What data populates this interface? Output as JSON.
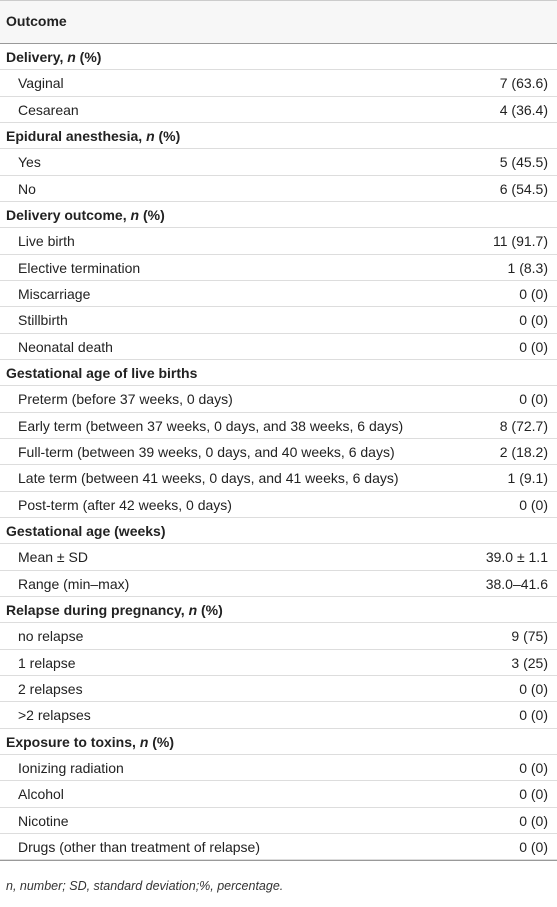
{
  "table": {
    "header": "Outcome",
    "sections": [
      {
        "title": [
          {
            "text": "Delivery, "
          },
          {
            "text": "n",
            "italic": true
          },
          {
            "text": " (%)"
          }
        ],
        "rows": [
          [
            "Vaginal",
            "7 (63.6)"
          ],
          [
            "Cesarean",
            "4 (36.4)"
          ]
        ]
      },
      {
        "title": [
          {
            "text": "Epidural anesthesia, "
          },
          {
            "text": "n",
            "italic": true
          },
          {
            "text": " (%)"
          }
        ],
        "rows": [
          [
            "Yes",
            "5 (45.5)"
          ],
          [
            "No",
            "6 (54.5)"
          ]
        ]
      },
      {
        "title": [
          {
            "text": "Delivery outcome, "
          },
          {
            "text": "n",
            "italic": true
          },
          {
            "text": " (%)"
          }
        ],
        "rows": [
          [
            "Live birth",
            "11 (91.7)"
          ],
          [
            "Elective termination",
            "1 (8.3)"
          ],
          [
            "Miscarriage",
            "0 (0)"
          ],
          [
            "Stillbirth",
            "0 (0)"
          ],
          [
            "Neonatal death",
            "0 (0)"
          ]
        ]
      },
      {
        "title": [
          {
            "text": "Gestational age of live births"
          }
        ],
        "rows": [
          [
            "Preterm (before 37 weeks, 0 days)",
            "0 (0)"
          ],
          [
            "Early term (between 37 weeks, 0 days, and 38 weeks, 6 days)",
            "8 (72.7)"
          ],
          [
            "Full-term (between 39 weeks, 0 days, and 40 weeks, 6 days)",
            "2 (18.2)"
          ],
          [
            "Late term (between 41 weeks, 0 days, and 41 weeks, 6 days)",
            "1 (9.1)"
          ],
          [
            "Post-term (after 42 weeks, 0 days)",
            "0 (0)"
          ]
        ]
      },
      {
        "title": [
          {
            "text": "Gestational age (weeks)"
          }
        ],
        "rows": [
          [
            "Mean ± SD",
            "39.0 ± 1.1"
          ],
          [
            "Range (min–max)",
            "38.0–41.6"
          ]
        ]
      },
      {
        "title": [
          {
            "text": "Relapse during pregnancy, "
          },
          {
            "text": "n",
            "italic": true
          },
          {
            "text": " (%)"
          }
        ],
        "rows": [
          [
            "no relapse",
            "9 (75)"
          ],
          [
            "1 relapse",
            "3 (25)"
          ],
          [
            "2 relapses",
            "0 (0)"
          ],
          [
            ">2 relapses",
            "0 (0)"
          ]
        ]
      },
      {
        "title": [
          {
            "text": "Exposure to toxins, "
          },
          {
            "text": "n",
            "italic": true
          },
          {
            "text": " (%)"
          }
        ],
        "rows": [
          [
            "Ionizing radiation",
            "0 (0)"
          ],
          [
            "Alcohol",
            "0 (0)"
          ],
          [
            "Nicotine",
            "0 (0)"
          ],
          [
            "Drugs (other than treatment of relapse)",
            "0 (0)"
          ]
        ]
      }
    ],
    "footnote": "n, number; SD, standard deviation;%, percentage."
  }
}
